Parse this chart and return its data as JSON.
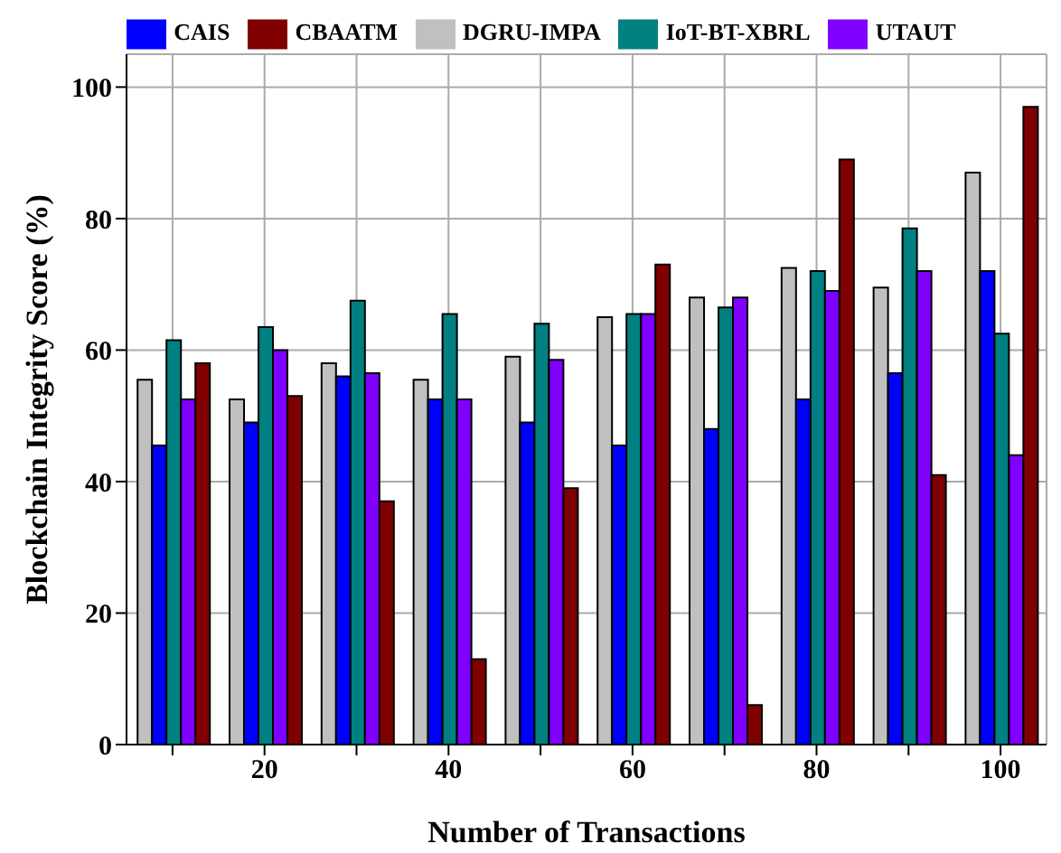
{
  "chart_data": {
    "type": "bar",
    "xlabel": "Number of Transactions",
    "ylabel": "Blockchain Integrity Score (%)",
    "categories": [
      null,
      "20",
      null,
      "40",
      null,
      "60",
      null,
      "80",
      null,
      "100"
    ],
    "series": [
      {
        "name": "DGRU-IMPA",
        "color": "#c0c0c0",
        "values": [
          55.5,
          52.5,
          58,
          55.5,
          59,
          65,
          68,
          72.5,
          69.5,
          87
        ]
      },
      {
        "name": "CAIS",
        "color": "#0000ff",
        "values": [
          45.5,
          49,
          56,
          52.5,
          49,
          45.5,
          48,
          52.5,
          56.5,
          72
        ]
      },
      {
        "name": "IoT-BT-XBRL",
        "color": "#008080",
        "values": [
          61.5,
          63.5,
          67.5,
          65.5,
          64,
          65.5,
          66.5,
          72,
          78.5,
          62.5
        ]
      },
      {
        "name": "UTAUT",
        "color": "#8000ff",
        "values": [
          52.5,
          60,
          56.5,
          52.5,
          58.5,
          65.5,
          68,
          69,
          72,
          44
        ]
      },
      {
        "name": "CBAATM",
        "color": "#800000",
        "values": [
          58,
          53,
          37,
          13,
          39,
          73,
          6,
          89,
          41,
          97
        ]
      }
    ],
    "ylim": [
      0,
      105
    ],
    "yticks": [
      0,
      20,
      40,
      60,
      80,
      100
    ],
    "grid": true,
    "legend": "top"
  }
}
